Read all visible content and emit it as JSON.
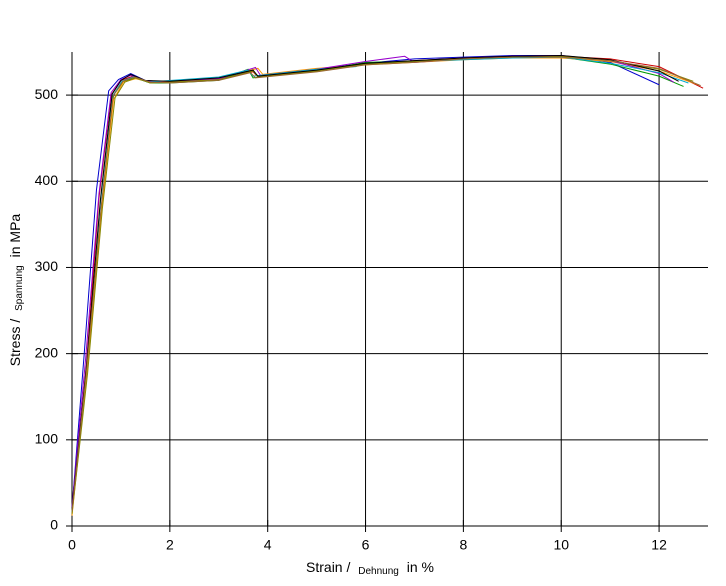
{
  "chart_data": {
    "type": "line",
    "xlabel_parts": [
      "Strain /",
      "Dehnung",
      "in %"
    ],
    "ylabel_parts": [
      "Stress /",
      "Spannung",
      "in MPa"
    ],
    "xlim": [
      0,
      13
    ],
    "ylim": [
      0,
      550
    ],
    "xticks": [
      0,
      2,
      4,
      6,
      8,
      10,
      12
    ],
    "yticks": [
      0,
      100,
      200,
      300,
      400,
      500
    ],
    "grid": true,
    "series": [
      {
        "color": "#0000cc",
        "x": [
          0,
          0.25,
          0.5,
          0.75,
          0.95,
          1.2,
          1.5,
          2,
          3,
          3.7,
          3.8,
          5,
          6,
          7,
          8,
          9,
          10,
          11,
          12
        ],
        "values": [
          20,
          200,
          390,
          505,
          518,
          525,
          517,
          515,
          519,
          528,
          522,
          530,
          537,
          542,
          544,
          546,
          546,
          538,
          512
        ]
      },
      {
        "color": "#cc0000",
        "x": [
          0,
          0.3,
          0.55,
          0.8,
          1.0,
          1.25,
          1.5,
          2,
          3,
          3.7,
          3.8,
          5,
          6,
          7,
          8,
          9,
          10,
          11,
          12,
          12.9
        ],
        "values": [
          15,
          190,
          380,
          500,
          517,
          522,
          516,
          515,
          518,
          527,
          521,
          529,
          536,
          540,
          543,
          545,
          545,
          542,
          533,
          508
        ]
      },
      {
        "color": "#009900",
        "x": [
          0,
          0.3,
          0.6,
          0.85,
          1.05,
          1.3,
          1.6,
          2,
          3,
          3.6,
          3.7,
          5,
          6,
          7,
          8,
          9,
          10,
          11,
          12,
          12.5
        ],
        "values": [
          18,
          180,
          370,
          500,
          516,
          520,
          514,
          514,
          517,
          530,
          520,
          528,
          538,
          539,
          542,
          544,
          544,
          536,
          522,
          510
        ]
      },
      {
        "color": "#ff9900",
        "x": [
          0,
          0.3,
          0.6,
          0.85,
          1.05,
          1.3,
          1.6,
          2,
          3,
          3.8,
          3.9,
          5,
          6,
          7,
          8,
          9,
          10,
          11,
          12,
          12.8
        ],
        "values": [
          12,
          175,
          365,
          495,
          515,
          519,
          515,
          516,
          520,
          531,
          524,
          531,
          535,
          538,
          541,
          543,
          543,
          539,
          528,
          512
        ]
      },
      {
        "color": "#9900cc",
        "x": [
          0,
          0.28,
          0.55,
          0.8,
          1.0,
          1.2,
          1.5,
          2,
          3,
          3.75,
          3.85,
          5,
          6,
          6.8,
          7,
          8,
          9,
          10,
          11,
          12,
          12.3
        ],
        "values": [
          22,
          195,
          385,
          503,
          518,
          523,
          516,
          516,
          519,
          532,
          523,
          530,
          539,
          545,
          538,
          542,
          545,
          546,
          540,
          525,
          515
        ]
      },
      {
        "color": "#00aacc",
        "x": [
          0,
          0.3,
          0.58,
          0.82,
          1.02,
          1.25,
          1.55,
          2,
          3,
          3.6,
          3.7,
          5,
          5.8,
          6,
          7,
          8,
          9,
          10,
          11,
          12,
          12.6
        ],
        "values": [
          16,
          185,
          375,
          498,
          516,
          521,
          515,
          517,
          521,
          529,
          522,
          530,
          533,
          537,
          539,
          541,
          543,
          544,
          537,
          526,
          514
        ]
      },
      {
        "color": "#888800",
        "x": [
          0,
          0.32,
          0.62,
          0.88,
          1.08,
          1.3,
          1.6,
          2,
          3,
          3.7,
          3.8,
          5,
          6,
          7,
          8,
          9,
          10,
          11,
          12,
          12.7
        ],
        "values": [
          14,
          178,
          368,
          497,
          515,
          520,
          514,
          515,
          518,
          528,
          521,
          528,
          536,
          539,
          542,
          544,
          545,
          540,
          530,
          516
        ]
      },
      {
        "color": "#000000",
        "x": [
          0,
          0.3,
          0.58,
          0.82,
          1.0,
          1.2,
          1.5,
          2,
          3,
          3.7,
          3.8,
          5,
          6,
          7,
          8,
          9,
          10,
          11,
          12,
          12.4
        ],
        "values": [
          19,
          188,
          378,
          501,
          517,
          524,
          517,
          516,
          520,
          529,
          522,
          529,
          537,
          540,
          543,
          545,
          546,
          541,
          528,
          516
        ]
      },
      {
        "color": "#996633",
        "x": [
          0,
          0.3,
          0.6,
          0.84,
          1.04,
          1.28,
          1.6,
          2,
          3,
          3.65,
          3.75,
          5,
          6,
          7,
          8,
          9,
          10,
          11,
          12,
          12.85
        ],
        "values": [
          17,
          182,
          372,
          499,
          516,
          521,
          515,
          514,
          517,
          526,
          520,
          527,
          535,
          538,
          542,
          544,
          544,
          540,
          531,
          511
        ]
      }
    ]
  }
}
